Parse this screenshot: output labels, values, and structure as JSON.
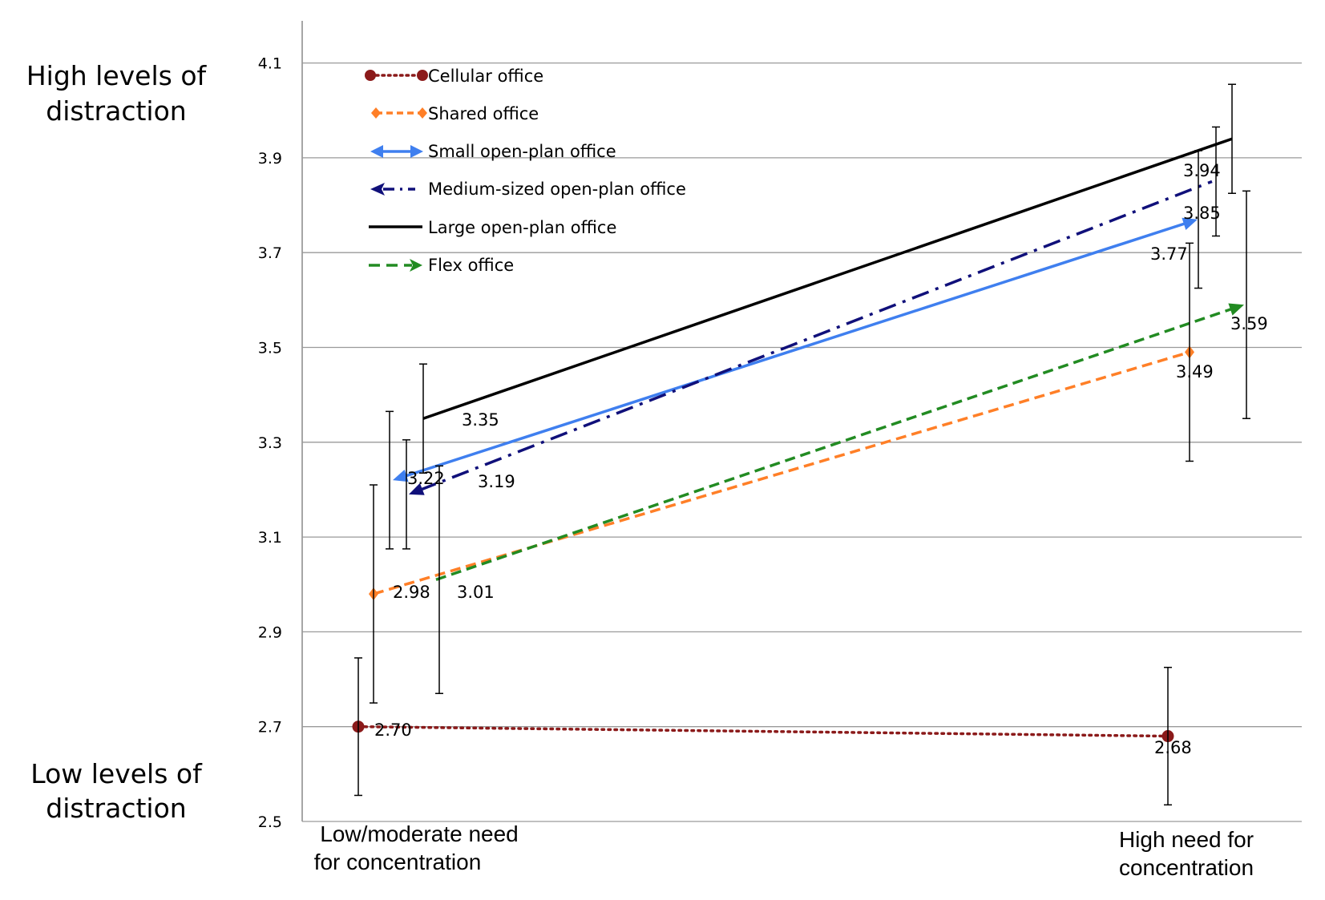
{
  "side_labels": {
    "high": [
      "High levels of",
      "distraction"
    ],
    "low": [
      "Low levels of",
      "distraction"
    ]
  },
  "chart_data": {
    "type": "line",
    "categories": [
      [
        "Low/moderate need",
        "for concentration"
      ],
      [
        "High need for",
        "concentration"
      ]
    ],
    "ylim": [
      2.5,
      4.2
    ],
    "yticks": [
      "2.5",
      "2.7",
      "2.9",
      "3.1",
      "3.3",
      "3.5",
      "3.7",
      "3.9",
      "4.1"
    ],
    "grid": true,
    "legend_position": "top-left",
    "series": [
      {
        "name": "Cellular office",
        "values": [
          2.7,
          2.68
        ],
        "labels": [
          "2.70",
          "2.68"
        ],
        "error_low": [
          2.555,
          2.535
        ],
        "error_high": [
          2.845,
          2.825
        ],
        "color": "#8B1A1A",
        "style": "dotted",
        "marker": "circle"
      },
      {
        "name": "Shared office",
        "values": [
          2.98,
          3.49
        ],
        "labels": [
          "2.98",
          "3.49"
        ],
        "error_low": [
          2.75,
          3.26
        ],
        "error_high": [
          3.21,
          3.72
        ],
        "color": "#FF7F27",
        "style": "dashed",
        "marker": "diamond"
      },
      {
        "name": "Small open-plan office",
        "values": [
          3.22,
          3.77
        ],
        "labels": [
          "3.22",
          "3.77"
        ],
        "error_low": [
          3.075,
          3.625
        ],
        "error_high": [
          3.365,
          3.915
        ],
        "color": "#3F7FEF",
        "style": "solid",
        "marker": "arrow"
      },
      {
        "name": "Medium-sized open-plan office",
        "values": [
          3.19,
          3.85
        ],
        "labels": [
          "3.19",
          "3.85"
        ],
        "error_low": [
          3.075,
          3.735
        ],
        "error_high": [
          3.305,
          3.965
        ],
        "color": "#10107A",
        "style": "dashdot",
        "marker": "arrow"
      },
      {
        "name": "Large open-plan office",
        "values": [
          3.35,
          3.94
        ],
        "labels": [
          "3.35",
          "3.94"
        ],
        "error_low": [
          3.235,
          3.825
        ],
        "error_high": [
          3.465,
          4.055
        ],
        "color": "#000000",
        "style": "solid",
        "marker": "none"
      },
      {
        "name": "Flex office",
        "values": [
          3.01,
          3.59
        ],
        "labels": [
          "3.01",
          "3.59"
        ],
        "error_low": [
          2.77,
          3.35
        ],
        "error_high": [
          3.25,
          3.83
        ],
        "color": "#228B22",
        "style": "dashed",
        "marker": "arrow"
      }
    ]
  }
}
